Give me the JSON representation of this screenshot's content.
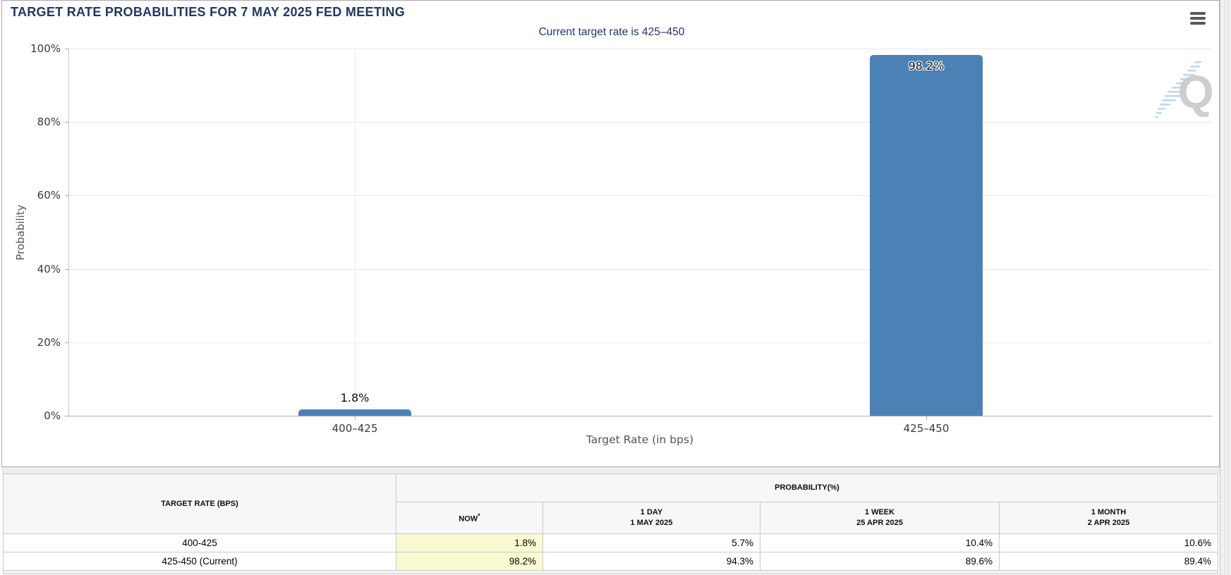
{
  "panel": {
    "title": "TARGET RATE PROBABILITIES FOR 7 MAY 2025 FED MEETING"
  },
  "chart": {
    "subtitle": "Current target rate is 425–450",
    "y_axis_title": "Probability",
    "x_axis_title": "Target Rate (in bps)",
    "y_ticks": [
      "100%",
      "80%",
      "60%",
      "40%",
      "20%",
      "0%"
    ],
    "watermark_letter": "Q"
  },
  "chart_data": {
    "type": "bar",
    "title": "TARGET RATE PROBABILITIES FOR 7 MAY 2025 FED MEETING",
    "subtitle": "Current target rate is 425–450",
    "categories": [
      "400–425",
      "425–450"
    ],
    "values": [
      1.8,
      98.2
    ],
    "value_labels": [
      "1.8%",
      "98.2%"
    ],
    "xlabel": "Target Rate (in bps)",
    "ylabel": "Probability",
    "ylim": [
      0,
      100
    ],
    "y_tick_step": 20,
    "y_tick_format": "percent",
    "grid": true,
    "legend": false,
    "bar_color": "#4A82B6",
    "displayed_series": "NOW",
    "series": [
      {
        "name": "NOW",
        "values": [
          1.8,
          98.2
        ]
      },
      {
        "name": "1 DAY (1 MAY 2025)",
        "values": [
          5.7,
          94.3
        ]
      },
      {
        "name": "1 WEEK (25 APR 2025)",
        "values": [
          10.4,
          89.6
        ]
      },
      {
        "name": "1 MONTH (2 APR 2025)",
        "values": [
          10.6,
          89.4
        ]
      }
    ]
  },
  "table": {
    "header": {
      "target_rate": "TARGET RATE (BPS)",
      "probability_group": "PROBABILITY(%)",
      "now": "NOW",
      "now_footnote": "*",
      "day_line1": "1 DAY",
      "day_line2": "1 MAY 2025",
      "week_line1": "1 WEEK",
      "week_line2": "25 APR 2025",
      "month_line1": "1 MONTH",
      "month_line2": "2 APR 2025"
    },
    "rows": [
      {
        "rate": "400-425",
        "now": "1.8%",
        "day": "5.7%",
        "week": "10.4%",
        "month": "10.6%"
      },
      {
        "rate": "425-450 (Current)",
        "now": "98.2%",
        "day": "94.3%",
        "week": "89.6%",
        "month": "89.4%"
      }
    ]
  },
  "colors": {
    "bar": "#4A82B6",
    "now_highlight": "#FAFAD2",
    "title": "#1F3865"
  }
}
